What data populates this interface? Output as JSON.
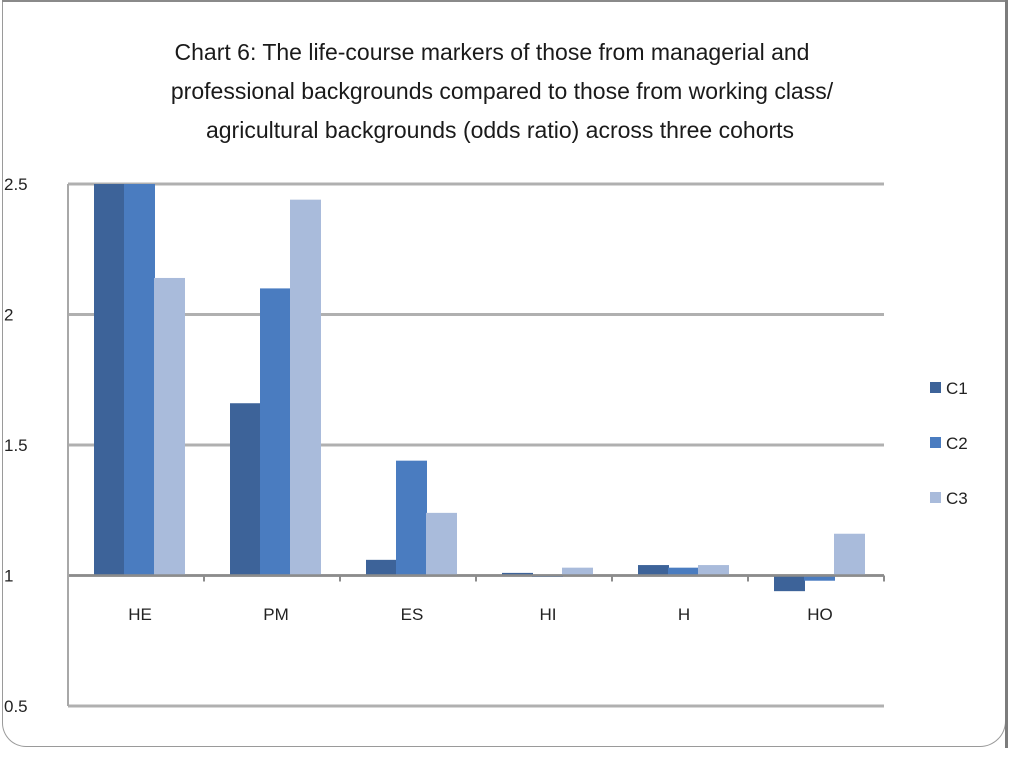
{
  "chart_data": {
    "type": "bar",
    "title_lines": [
      "Chart 6: The life-course markers of those from managerial and",
      "professional backgrounds compared to those from working class/",
      "agricultural backgrounds (odds ratio) across three cohorts"
    ],
    "categories": [
      "HE",
      "PM",
      "ES",
      "HI",
      "H",
      "HO"
    ],
    "series": [
      {
        "name": "C1",
        "color": "#3d6399",
        "values": [
          2.5,
          1.66,
          1.06,
          1.01,
          1.04,
          0.94
        ]
      },
      {
        "name": "C2",
        "color": "#4a7cc0",
        "values": [
          2.5,
          2.1,
          1.44,
          1.0,
          1.03,
          0.98
        ]
      },
      {
        "name": "C3",
        "color": "#a9bbdb",
        "values": [
          2.14,
          2.44,
          1.24,
          1.03,
          1.04,
          1.16
        ]
      }
    ],
    "y_ticks": [
      "2.5",
      "2",
      "1.5",
      "1",
      "0.5"
    ],
    "ylim": [
      0.5,
      2.5
    ],
    "baseline": 1,
    "grid": true,
    "legend_position": "right"
  }
}
